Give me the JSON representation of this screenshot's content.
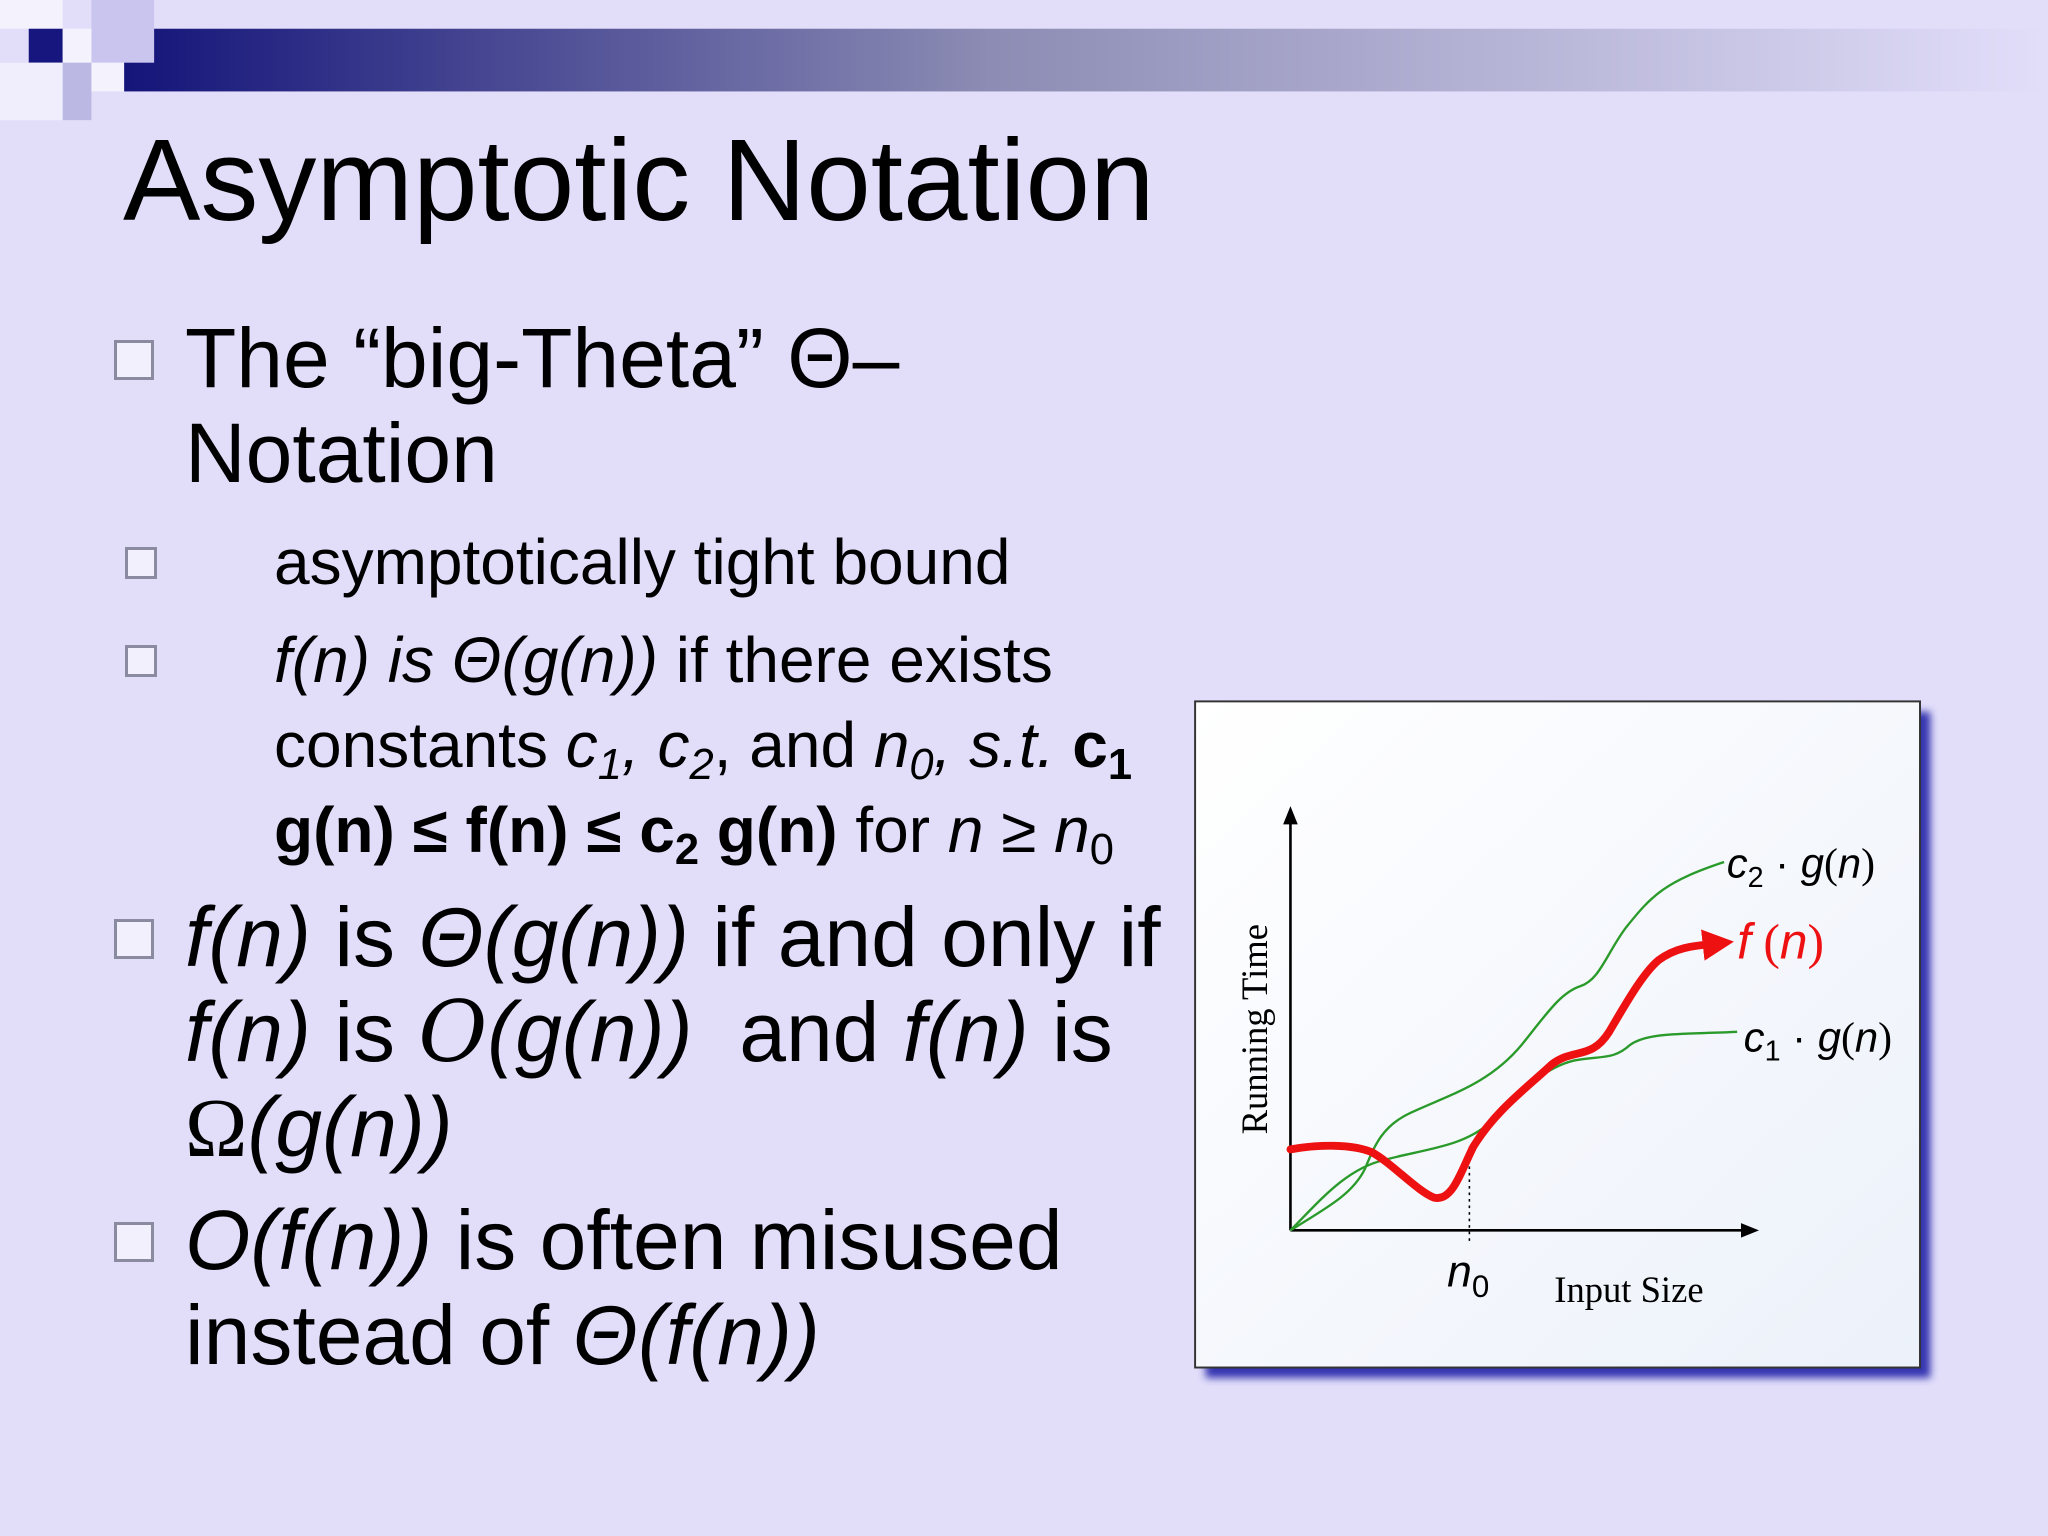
{
  "title": "Asymptotic Notation",
  "bullets": [
    {
      "runs": [
        "The “big-Theta” Θ–Notation"
      ],
      "sub": [
        {
          "runs": [
            "asymptotically tight bound"
          ]
        },
        {
          "runs": [
            "f(n) is Θ(g(n))",
            " if there exists constants ",
            "c",
            "1",
            ", ",
            "c",
            "2",
            ", and ",
            "n",
            "0",
            ", s.t. ",
            "c",
            "1",
            " g(n) ≤ f(n) ≤ c",
            "2",
            " g(n)",
            " for ",
            "n",
            " ≥ ",
            "n",
            "0"
          ]
        }
      ]
    },
    {
      "runs": [
        "f(n)",
        " is ",
        "Θ(g(n))",
        " if and only if ",
        "f(n)",
        " is ",
        "O",
        "(g(n))",
        "  and ",
        "f(n)",
        " is ",
        "Ω",
        "(g(n))"
      ]
    },
    {
      "runs": [
        "O(f(n))",
        " is often misused instead of ",
        "Θ(f(n))"
      ]
    }
  ],
  "figure": {
    "y_label": "Running Time",
    "x_label": "Input Size",
    "n0_label": [
      "n",
      "0"
    ],
    "upper_label": [
      "c",
      "2",
      " · ",
      "g",
      "(",
      "n",
      ")"
    ],
    "f_label": [
      "f",
      " (",
      "n",
      ")"
    ],
    "lower_label": [
      "c",
      "1",
      " · ",
      "g",
      "(",
      "n",
      ")"
    ]
  }
}
